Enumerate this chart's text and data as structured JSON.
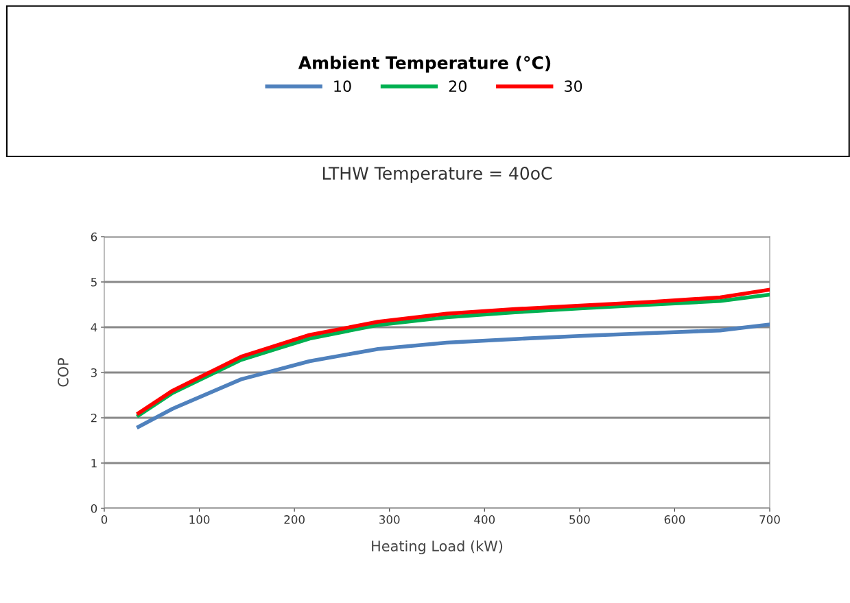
{
  "chart_data": {
    "type": "line",
    "title": "LTHW Temperature = 40oC",
    "xlabel": "Heating Load (kW)",
    "ylabel": "COP",
    "legend_title": "Ambient Temperature (°C)",
    "x": [
      36,
      72,
      144,
      216,
      288,
      360,
      432,
      504,
      576,
      648,
      700
    ],
    "series": [
      {
        "name": "10",
        "color": "#4f81bd",
        "values": [
          1.8,
          2.2,
          2.85,
          3.25,
          3.52,
          3.66,
          3.74,
          3.81,
          3.87,
          3.93,
          4.06
        ]
      },
      {
        "name": "20",
        "color": "#00b050",
        "values": [
          2.05,
          2.55,
          3.28,
          3.75,
          4.05,
          4.22,
          4.33,
          4.42,
          4.5,
          4.58,
          4.72
        ]
      },
      {
        "name": "30",
        "color": "#ff0000",
        "values": [
          2.1,
          2.6,
          3.35,
          3.83,
          4.12,
          4.3,
          4.4,
          4.48,
          4.56,
          4.66,
          4.83
        ]
      }
    ],
    "xlim": [
      0,
      700
    ],
    "xticks": [
      0,
      100,
      200,
      300,
      400,
      500,
      600,
      700
    ],
    "ylim": [
      0,
      6
    ],
    "yticks": [
      0,
      1,
      2,
      3,
      4,
      5,
      6
    ],
    "grid": "y",
    "legend": "top",
    "marker": "none",
    "line_style": "solid"
  }
}
